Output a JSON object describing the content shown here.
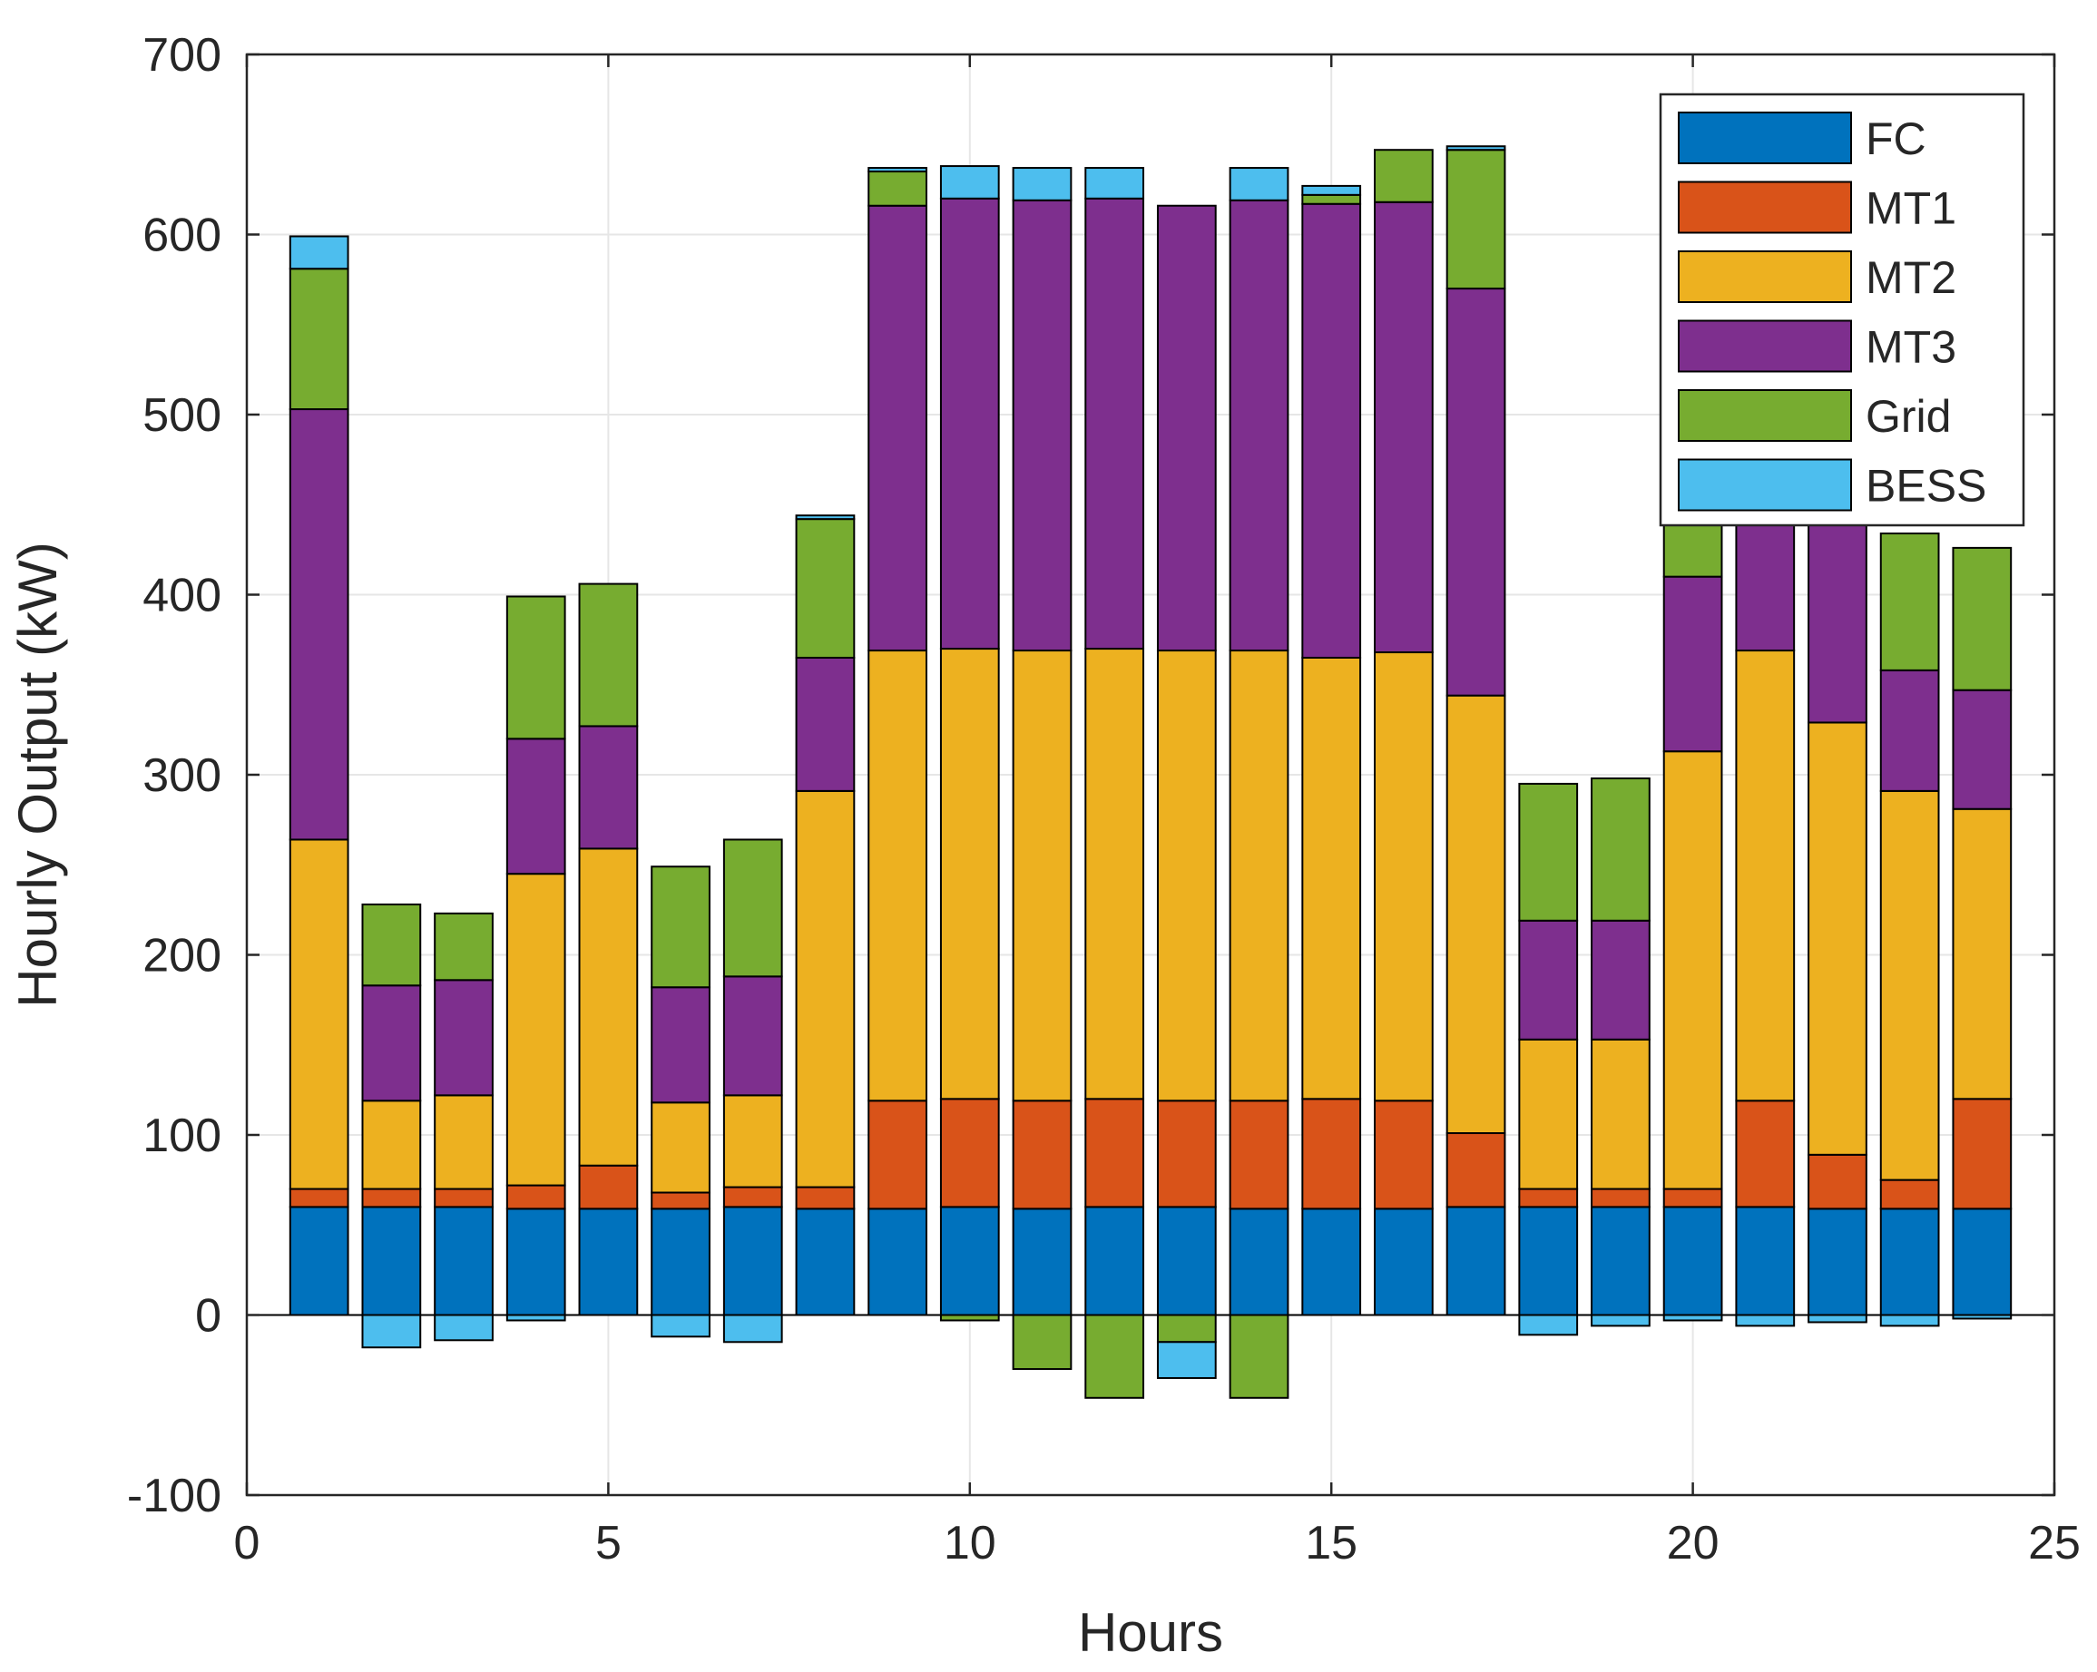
{
  "chart_data": {
    "type": "bar",
    "stacked": true,
    "xlabel": "Hours",
    "ylabel": "Hourly Output (kW)",
    "xlim": [
      0,
      25
    ],
    "ylim": [
      -100,
      700
    ],
    "xticks": [
      0,
      5,
      10,
      15,
      20,
      25
    ],
    "yticks": [
      -100,
      0,
      100,
      200,
      300,
      400,
      500,
      600,
      700
    ],
    "grid": true,
    "legend_position": "top-right",
    "x": [
      1,
      2,
      3,
      4,
      5,
      6,
      7,
      8,
      9,
      10,
      11,
      12,
      13,
      14,
      15,
      16,
      17,
      18,
      19,
      20,
      21,
      22,
      23,
      24
    ],
    "series": [
      {
        "name": "FC",
        "color": "#0072BD",
        "values": [
          60,
          60,
          60,
          59,
          59,
          59,
          60,
          59,
          59,
          60,
          59,
          60,
          60,
          59,
          59,
          59,
          60,
          60,
          60,
          60,
          60,
          59,
          59,
          59
        ]
      },
      {
        "name": "MT1",
        "color": "#D95319",
        "values": [
          10,
          10,
          10,
          13,
          24,
          9,
          11,
          12,
          60,
          60,
          60,
          60,
          59,
          60,
          61,
          60,
          41,
          10,
          10,
          10,
          59,
          30,
          16,
          61
        ]
      },
      {
        "name": "MT2",
        "color": "#EDB120",
        "values": [
          194,
          49,
          52,
          173,
          176,
          50,
          51,
          220,
          250,
          250,
          250,
          250,
          250,
          250,
          245,
          249,
          243,
          83,
          83,
          243,
          250,
          240,
          216,
          161
        ]
      },
      {
        "name": "MT3",
        "color": "#7E2F8E",
        "values": [
          239,
          64,
          64,
          75,
          68,
          64,
          66,
          74,
          247,
          250,
          250,
          250,
          247,
          250,
          252,
          250,
          226,
          66,
          66,
          97,
          120,
          145,
          67,
          66
        ]
      },
      {
        "name": "Grid",
        "color": "#77AC30",
        "values": [
          78,
          45,
          37,
          79,
          79,
          67,
          76,
          77,
          19,
          -3,
          -30,
          -46,
          -15,
          -46,
          5,
          29,
          77,
          76,
          79,
          77,
          20,
          40,
          76,
          79
        ]
      },
      {
        "name": "BESS",
        "color": "#4DBEEE",
        "values": [
          18,
          -18,
          -14,
          -3,
          0,
          -12,
          -15,
          2,
          2,
          18,
          18,
          17,
          -20,
          18,
          5,
          0,
          2,
          -11,
          -6,
          -3,
          -6,
          -4,
          -6,
          -2
        ]
      }
    ]
  }
}
